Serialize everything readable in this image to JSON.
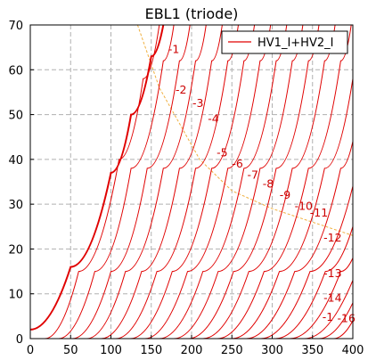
{
  "chart_data": {
    "type": "line",
    "title": "EBL1 (triode)",
    "xlabel": "",
    "ylabel": "",
    "xlim": [
      0,
      400
    ],
    "ylim": [
      0,
      70
    ],
    "xticks": [
      0,
      50,
      100,
      150,
      200,
      250,
      300,
      350,
      400
    ],
    "yticks": [
      0,
      10,
      20,
      30,
      40,
      50,
      60,
      70
    ],
    "grid": true,
    "legend": {
      "position": "top-right",
      "entries": [
        "HV1_I+HV2_I"
      ]
    },
    "colors": {
      "curves": "#e00000",
      "load_line": "#f0b040",
      "grid": "#b0b0b0"
    },
    "series": [
      {
        "grid_voltage": "0",
        "emphasized": true,
        "points": [
          [
            0,
            2
          ],
          [
            50,
            16
          ],
          [
            100,
            37
          ],
          [
            125,
            50
          ],
          [
            150,
            63
          ],
          [
            165,
            70
          ]
        ]
      },
      {
        "grid_voltage": "-1",
        "points": [
          [
            18,
            0
          ],
          [
            60,
            15
          ],
          [
            110,
            40
          ],
          [
            140,
            58
          ],
          [
            160,
            70
          ]
        ]
      },
      {
        "grid_voltage": "-2",
        "points": [
          [
            35,
            0
          ],
          [
            80,
            15
          ],
          [
            125,
            38
          ],
          [
            165,
            62
          ],
          [
            178,
            70
          ]
        ]
      },
      {
        "grid_voltage": "-3",
        "points": [
          [
            52,
            0
          ],
          [
            100,
            15
          ],
          [
            145,
            38
          ],
          [
            185,
            62
          ],
          [
            198,
            70
          ]
        ]
      },
      {
        "grid_voltage": "-4",
        "points": [
          [
            70,
            0
          ],
          [
            118,
            15
          ],
          [
            165,
            38
          ],
          [
            205,
            62
          ],
          [
            218,
            70
          ]
        ]
      },
      {
        "grid_voltage": "-5",
        "points": [
          [
            88,
            0
          ],
          [
            138,
            15
          ],
          [
            185,
            38
          ],
          [
            225,
            62
          ],
          [
            238,
            70
          ]
        ]
      },
      {
        "grid_voltage": "-6",
        "points": [
          [
            106,
            0
          ],
          [
            157,
            15
          ],
          [
            205,
            38
          ],
          [
            245,
            62
          ],
          [
            258,
            70
          ]
        ]
      },
      {
        "grid_voltage": "-7",
        "points": [
          [
            124,
            0
          ],
          [
            176,
            15
          ],
          [
            225,
            38
          ],
          [
            265,
            62
          ],
          [
            278,
            70
          ]
        ]
      },
      {
        "grid_voltage": "-8",
        "points": [
          [
            142,
            0
          ],
          [
            195,
            15
          ],
          [
            245,
            38
          ],
          [
            285,
            62
          ],
          [
            298,
            70
          ]
        ]
      },
      {
        "grid_voltage": "-9",
        "points": [
          [
            160,
            0
          ],
          [
            214,
            15
          ],
          [
            265,
            38
          ],
          [
            305,
            62
          ],
          [
            318,
            70
          ]
        ]
      },
      {
        "grid_voltage": "-10",
        "points": [
          [
            178,
            0
          ],
          [
            233,
            15
          ],
          [
            285,
            38
          ],
          [
            325,
            62
          ],
          [
            338,
            70
          ]
        ]
      },
      {
        "grid_voltage": "-11",
        "points": [
          [
            196,
            0
          ],
          [
            252,
            15
          ],
          [
            305,
            38
          ],
          [
            345,
            62
          ],
          [
            358,
            70
          ]
        ]
      },
      {
        "grid_voltage": "-12",
        "points": [
          [
            214,
            0
          ],
          [
            271,
            15
          ],
          [
            325,
            38
          ],
          [
            365,
            62
          ],
          [
            378,
            70
          ]
        ]
      },
      {
        "grid_voltage": "-13",
        "points": [
          [
            232,
            0
          ],
          [
            290,
            15
          ],
          [
            345,
            38
          ],
          [
            385,
            62
          ],
          [
            398,
            70
          ]
        ]
      },
      {
        "grid_voltage": "-14",
        "points": [
          [
            250,
            0
          ],
          [
            309,
            15
          ],
          [
            365,
            38
          ],
          [
            400,
            58
          ]
        ]
      },
      {
        "grid_voltage": "-15",
        "points": [
          [
            268,
            0
          ],
          [
            328,
            15
          ],
          [
            385,
            38
          ],
          [
            400,
            44
          ]
        ]
      },
      {
        "grid_voltage": "-16",
        "points": [
          [
            286,
            0
          ],
          [
            347,
            15
          ],
          [
            400,
            34
          ]
        ]
      },
      {
        "grid_voltage": "-17",
        "points": [
          [
            304,
            0
          ],
          [
            366,
            15
          ],
          [
            400,
            25
          ]
        ]
      },
      {
        "grid_voltage": "-18",
        "points": [
          [
            322,
            0
          ],
          [
            385,
            15
          ],
          [
            400,
            18
          ]
        ]
      },
      {
        "grid_voltage": "-19",
        "points": [
          [
            340,
            0
          ],
          [
            400,
            13
          ]
        ]
      },
      {
        "grid_voltage": "-20",
        "points": [
          [
            358,
            0
          ],
          [
            400,
            8
          ]
        ]
      },
      {
        "grid_voltage": "-21",
        "points": [
          [
            376,
            0
          ],
          [
            400,
            4
          ]
        ]
      }
    ],
    "load_line": {
      "points": [
        [
          133,
          70
        ],
        [
          160,
          56
        ],
        [
          210,
          40
        ],
        [
          250,
          33
        ],
        [
          300,
          29
        ],
        [
          350,
          26
        ],
        [
          400,
          23
        ]
      ]
    },
    "annotations": [
      {
        "text": "-1",
        "x": 178,
        "y": 64.5
      },
      {
        "text": "-2",
        "x": 187,
        "y": 55.5
      },
      {
        "text": "-3",
        "x": 208,
        "y": 52.5
      },
      {
        "text": "-4",
        "x": 227,
        "y": 49
      },
      {
        "text": "-5",
        "x": 238,
        "y": 41.5
      },
      {
        "text": "-6",
        "x": 257,
        "y": 39
      },
      {
        "text": "-7",
        "x": 276,
        "y": 36.5
      },
      {
        "text": "-8",
        "x": 295,
        "y": 34.5
      },
      {
        "text": "-9",
        "x": 316,
        "y": 32
      },
      {
        "text": "-10",
        "x": 339,
        "y": 29.5
      },
      {
        "text": "-11",
        "x": 358,
        "y": 28
      },
      {
        "text": "-12",
        "x": 375,
        "y": 22.5
      },
      {
        "text": "-13",
        "x": 375,
        "y": 14.5
      },
      {
        "text": "-14",
        "x": 375,
        "y": 9
      },
      {
        "text": "-1",
        "x": 369,
        "y": 4.8
      },
      {
        "text": "-16",
        "x": 392,
        "y": 4.5
      }
    ]
  }
}
